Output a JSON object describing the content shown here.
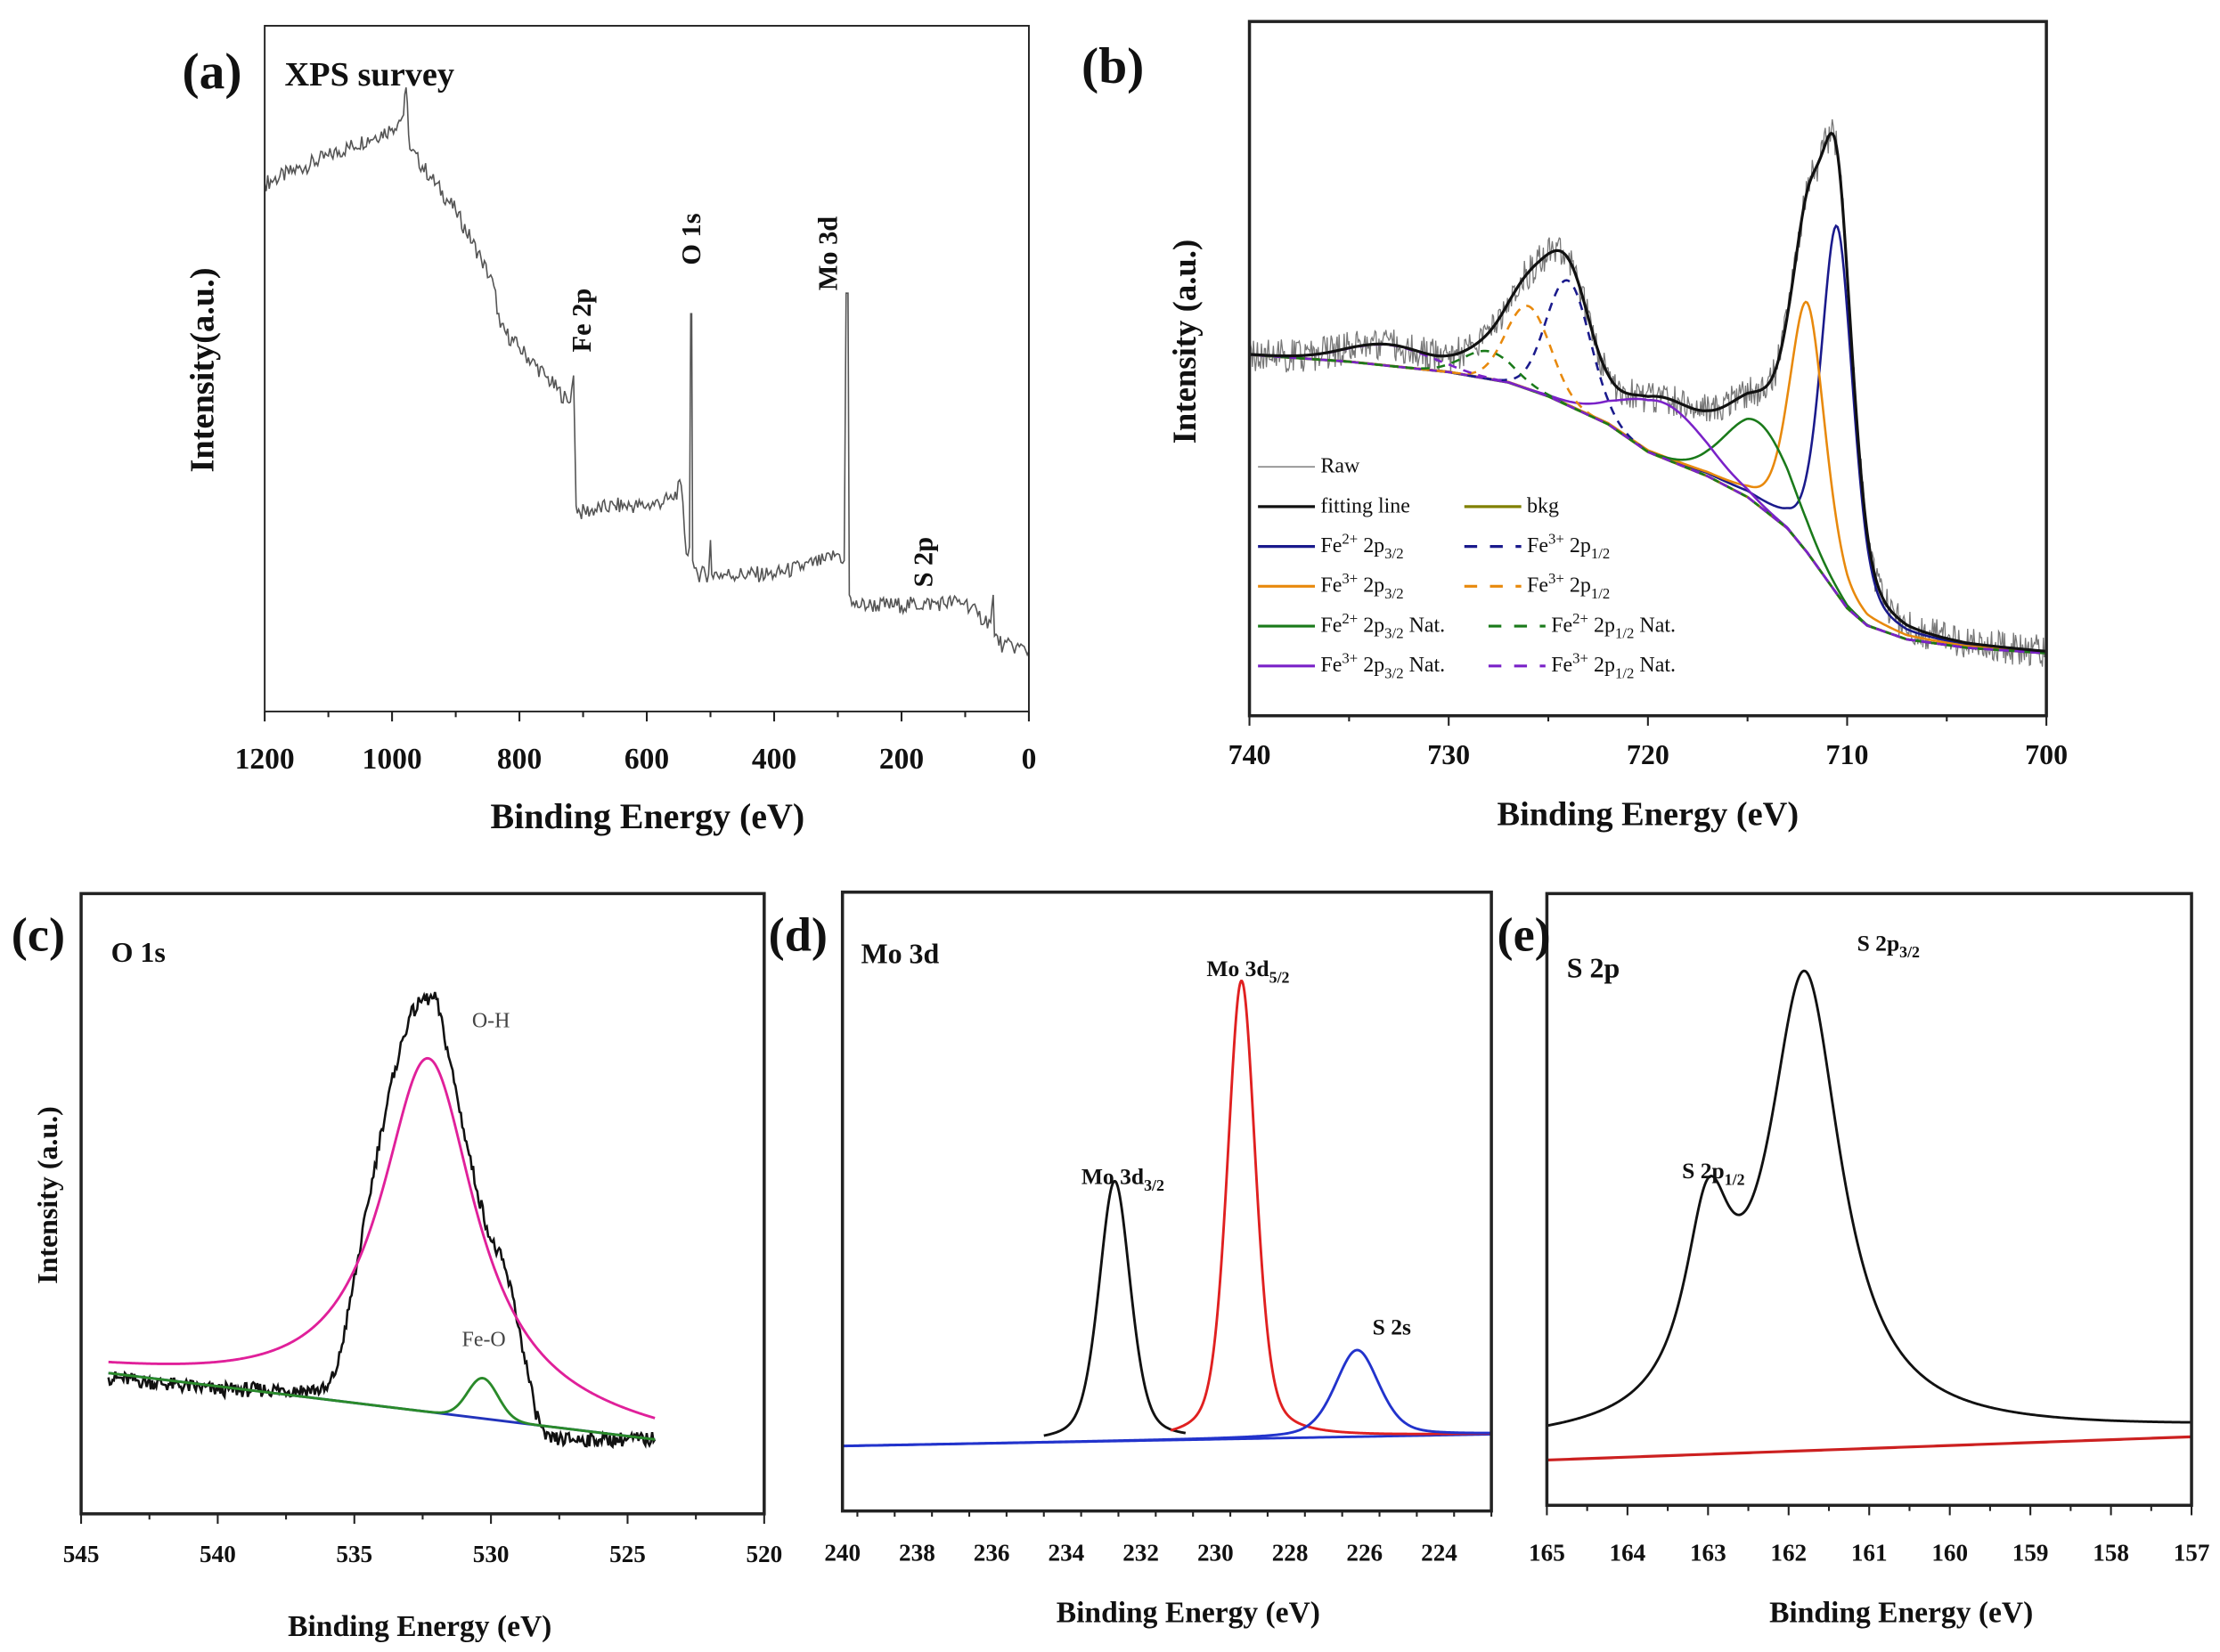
{
  "chart_data": [
    {
      "panel": "(a)",
      "title": "XPS survey",
      "type": "line",
      "xlabel": "Binding Energy (eV)",
      "ylabel": "Intensity(a.u.)",
      "xlim": [
        1200,
        0
      ],
      "ylim": [
        0,
        1
      ],
      "xticks": [
        "1200",
        "1000",
        "800",
        "600",
        "400",
        "200",
        "0"
      ],
      "xtick_values": [
        1200,
        1000,
        800,
        600,
        400,
        200,
        0
      ],
      "raw": {
        "color": "#555555",
        "points": [
          [
            1200,
            0.77
          ],
          [
            1100,
            0.81
          ],
          [
            1000,
            0.85
          ],
          [
            982,
            0.87
          ],
          [
            978,
            0.91
          ],
          [
            972,
            0.82
          ],
          [
            940,
            0.78
          ],
          [
            900,
            0.73
          ],
          [
            860,
            0.66
          ],
          [
            840,
            0.62
          ],
          [
            830,
            0.56
          ],
          [
            800,
            0.53
          ],
          [
            760,
            0.49
          ],
          [
            722,
            0.45
          ],
          [
            718,
            0.47
          ],
          [
            715,
            0.49
          ],
          [
            711,
            0.3
          ],
          [
            705,
            0.29
          ],
          [
            650,
            0.3
          ],
          [
            600,
            0.3
          ],
          [
            560,
            0.31
          ],
          [
            546,
            0.33
          ],
          [
            538,
            0.23
          ],
          [
            533,
            0.24
          ],
          [
            531,
            0.58
          ],
          [
            529.5,
            0.58
          ],
          [
            528,
            0.22
          ],
          [
            520,
            0.2
          ],
          [
            503,
            0.2
          ],
          [
            500,
            0.25
          ],
          [
            498,
            0.2
          ],
          [
            400,
            0.2
          ],
          [
            320,
            0.22
          ],
          [
            300,
            0.23
          ],
          [
            290,
            0.22
          ],
          [
            287,
            0.61
          ],
          [
            284,
            0.61
          ],
          [
            282,
            0.17
          ],
          [
            278,
            0.155
          ],
          [
            200,
            0.155
          ],
          [
            100,
            0.16
          ],
          [
            80,
            0.14
          ],
          [
            60,
            0.13
          ],
          [
            56,
            0.17
          ],
          [
            54,
            0.11
          ],
          [
            40,
            0.095
          ],
          [
            20,
            0.095
          ],
          [
            0,
            0.088
          ]
        ]
      },
      "annotations": [
        {
          "text": "Fe 2p",
          "x": 705
        },
        {
          "text": "O 1s",
          "x": 531
        },
        {
          "text": "Mo 3d",
          "x": 285
        },
        {
          "text": "S 2p",
          "x": 165
        }
      ]
    },
    {
      "panel": "(b)",
      "type": "line",
      "xlabel": "Binding Energy (eV)",
      "ylabel": "Intensity (a.u.)",
      "xlim": [
        740,
        700
      ],
      "ylim": [
        0,
        1
      ],
      "xticks": [
        "740",
        "730",
        "720",
        "710",
        "700"
      ],
      "xtick_values": [
        740,
        730,
        720,
        710,
        700
      ],
      "background": {
        "name": "bkg",
        "color": "#808000",
        "points": [
          [
            740,
            0.52
          ],
          [
            735,
            0.51
          ],
          [
            730,
            0.495
          ],
          [
            727,
            0.48
          ],
          [
            725,
            0.46
          ],
          [
            722,
            0.42
          ],
          [
            720,
            0.38
          ],
          [
            717,
            0.345
          ],
          [
            715,
            0.315
          ],
          [
            713,
            0.27
          ],
          [
            712,
            0.235
          ],
          [
            711,
            0.195
          ],
          [
            710,
            0.155
          ],
          [
            709,
            0.13
          ],
          [
            707,
            0.11
          ],
          [
            704,
            0.098
          ],
          [
            700,
            0.09
          ]
        ]
      },
      "peaks": [
        {
          "name": "Fe2+ 2p3/2",
          "color": "#1a1a8c",
          "dash": false,
          "shape": "voigt",
          "center": 710.5,
          "height": 0.53,
          "fwhm": 1.9
        },
        {
          "name": "Fe3+ 2p3/2",
          "color": "#e8890c",
          "dash": false,
          "shape": "voigt",
          "center": 712.0,
          "height": 0.36,
          "fwhm": 2.1
        },
        {
          "name": "Fe2+ 2p3/2 Nat.",
          "color": "#1a7a1a",
          "dash": false,
          "shape": "gauss",
          "center": 714.4,
          "height": 0.12,
          "fwhm": 4.0
        },
        {
          "name": "Fe3+ 2p3/2 Nat.",
          "color": "#7a22c8",
          "dash": false,
          "shape": "gauss",
          "center": 719.2,
          "height": 0.08,
          "fwhm": 5.0
        },
        {
          "name": "Fe3+ 2p1/2",
          "color": "#1a1a8c",
          "dash": true,
          "shape": "gauss",
          "center": 724.0,
          "height": 0.18,
          "fwhm": 2.6
        },
        {
          "name": "Fe3+ 2p1/2",
          "color": "#e8890c",
          "dash": true,
          "shape": "gauss",
          "center": 726.0,
          "height": 0.12,
          "fwhm": 2.6
        },
        {
          "name": "Fe2+ 2p1/2 Nat.",
          "color": "#1a7a1a",
          "dash": true,
          "shape": "gauss",
          "center": 728.0,
          "height": 0.04,
          "fwhm": 3.0
        },
        {
          "name": "Fe3+ 2p1/2 Nat.",
          "color": "#7a22c8",
          "dash": true,
          "shape": "gauss",
          "center": 733.0,
          "height": 0.03,
          "fwhm": 5.0
        }
      ],
      "envelope": {
        "name": "fitting line",
        "color": "#111111"
      },
      "raw_from_envelope": {
        "name": "Raw",
        "color": "#777777"
      },
      "legend_placement": "bottom-left",
      "legend": [
        {
          "color": "#888888",
          "dash": false,
          "label": [
            {
              "t": "Raw"
            }
          ]
        },
        {
          "color": "#111111",
          "dash": false,
          "label": [
            {
              "t": "fitting line"
            }
          ]
        },
        {
          "color": "#808000",
          "dash": false,
          "label": [
            {
              "t": "bkg"
            }
          ]
        },
        {
          "color": "#1a1a8c",
          "dash": false,
          "label": [
            {
              "t": "Fe"
            },
            {
              "t": "2+",
              "sup": true
            },
            {
              "t": " 2p"
            },
            {
              "t": "3/2",
              "sub": true
            }
          ]
        },
        {
          "color": "#1a1a8c",
          "dash": true,
          "label": [
            {
              "t": "Fe"
            },
            {
              "t": "3+",
              "sup": true
            },
            {
              "t": " 2p"
            },
            {
              "t": "1/2",
              "sub": true
            }
          ]
        },
        {
          "color": "#e8890c",
          "dash": false,
          "label": [
            {
              "t": "Fe"
            },
            {
              "t": "3+",
              "sup": true
            },
            {
              "t": " 2p"
            },
            {
              "t": "3/2",
              "sub": true
            }
          ]
        },
        {
          "color": "#e8890c",
          "dash": true,
          "label": [
            {
              "t": "Fe"
            },
            {
              "t": "3+",
              "sup": true
            },
            {
              "t": " 2p"
            },
            {
              "t": "1/2",
              "sub": true
            }
          ]
        },
        {
          "color": "#1a7a1a",
          "dash": false,
          "label": [
            {
              "t": "Fe"
            },
            {
              "t": "2+",
              "sup": true
            },
            {
              "t": " 2p"
            },
            {
              "t": "3/2",
              "sub": true
            },
            {
              "t": " Nat."
            }
          ]
        },
        {
          "color": "#1a7a1a",
          "dash": true,
          "label": [
            {
              "t": "Fe"
            },
            {
              "t": "2+",
              "sup": true
            },
            {
              "t": " 2p"
            },
            {
              "t": "1/2",
              "sub": true
            },
            {
              "t": " Nat."
            }
          ]
        },
        {
          "color": "#7a22c8",
          "dash": false,
          "label": [
            {
              "t": "Fe"
            },
            {
              "t": "3+",
              "sup": true
            },
            {
              "t": " 2p"
            },
            {
              "t": "3/2",
              "sub": true
            },
            {
              "t": " Nat."
            }
          ]
        },
        {
          "color": "#7a22c8",
          "dash": true,
          "label": [
            {
              "t": "Fe"
            },
            {
              "t": "3+",
              "sup": true
            },
            {
              "t": " 2p"
            },
            {
              "t": "1/2",
              "sub": true
            },
            {
              "t": " Nat."
            }
          ]
        }
      ]
    },
    {
      "panel": "(c)",
      "title": "O 1s",
      "type": "line",
      "xlabel": "Binding Energy (eV)",
      "ylabel": "Intensity (a.u.)",
      "xlim": [
        545,
        520
      ],
      "ylim": [
        0,
        1
      ],
      "xticks": [
        "545",
        "540",
        "535",
        "530",
        "525",
        "520"
      ],
      "xtick_values": [
        545,
        540,
        535,
        530,
        525,
        520
      ],
      "background": {
        "name": "bkg",
        "color": "#2233bb",
        "points": [
          [
            544,
            0.227
          ],
          [
            524,
            0.12
          ]
        ],
        "range": [
          544,
          524
        ]
      },
      "peaks": [
        {
          "name": "O-H",
          "color": "#e0209a",
          "dash": false,
          "shape": "lorentz",
          "center": 532.3,
          "height": 0.57,
          "fwhm": 4.2,
          "range": [
            544,
            524
          ]
        },
        {
          "name": "Fe-O",
          "color": "#2a8a2a",
          "dash": false,
          "shape": "gauss",
          "center": 530.3,
          "height": 0.065,
          "fwhm": 1.3,
          "range": [
            544,
            524
          ]
        }
      ],
      "raw": {
        "color": "#111111",
        "points": [
          [
            544,
            0.22
          ],
          [
            540,
            0.2
          ],
          [
            536,
            0.2
          ],
          [
            535.6,
            0.24
          ],
          [
            535.2,
            0.33
          ],
          [
            534.5,
            0.5
          ],
          [
            534,
            0.62
          ],
          [
            533.5,
            0.72
          ],
          [
            533,
            0.8
          ],
          [
            532.5,
            0.83
          ],
          [
            532,
            0.83
          ],
          [
            531.5,
            0.73
          ],
          [
            531,
            0.62
          ],
          [
            530.5,
            0.52
          ],
          [
            530,
            0.44
          ],
          [
            529.6,
            0.41
          ],
          [
            529.2,
            0.35
          ],
          [
            528.8,
            0.26
          ],
          [
            528.4,
            0.17
          ],
          [
            528,
            0.12
          ],
          [
            526,
            0.12
          ],
          [
            524,
            0.12
          ]
        ]
      },
      "annotations": [
        {
          "text": "O-H",
          "x": 531.2
        },
        {
          "text": "Fe-O",
          "x": 530.3
        }
      ]
    },
    {
      "panel": "(d)",
      "title": "Mo 3d",
      "type": "line",
      "xlabel": "Binding Energy (eV)",
      "xlim": [
        240,
        222.6
      ],
      "ylim": [
        0,
        1
      ],
      "xticks": [
        "240",
        "238",
        "236",
        "234",
        "232",
        "230",
        "228",
        "226",
        "224"
      ],
      "xtick_values": [
        240,
        238,
        236,
        234,
        232,
        230,
        228,
        226,
        224
      ],
      "background": {
        "name": "baseline",
        "color": "#2233cc",
        "points": [
          [
            240,
            0.105
          ],
          [
            222.6,
            0.124
          ]
        ],
        "range": [
          240,
          222.6
        ]
      },
      "peaks": [
        {
          "name": "Mo 3d3/2",
          "color": "#111111",
          "dash": false,
          "shape": "voigt",
          "center": 232.7,
          "height": 0.42,
          "fwhm": 1.0,
          "range": [
            234.6,
            230.8
          ]
        },
        {
          "name": "Mo 3d5/2",
          "color": "#e02020",
          "dash": false,
          "shape": "voigt",
          "center": 229.3,
          "height": 0.74,
          "fwhm": 0.9,
          "range": [
            231.2,
            222.6
          ]
        },
        {
          "name": "S 2s",
          "color": "#2233cc",
          "dash": false,
          "shape": "voigt",
          "center": 226.2,
          "height": 0.14,
          "fwhm": 1.4,
          "range": [
            240,
            222.6
          ]
        }
      ],
      "annotations": [
        {
          "label": [
            {
              "t": "Mo 3d"
            },
            {
              "t": "3/2",
              "sub": true
            }
          ],
          "x": 232.7
        },
        {
          "label": [
            {
              "t": "Mo 3d"
            },
            {
              "t": "5/2",
              "sub": true
            }
          ],
          "x": 229.3
        },
        {
          "label": [
            {
              "t": "S 2s"
            }
          ],
          "x": 226.2
        }
      ]
    },
    {
      "panel": "(e)",
      "title": "S 2p",
      "type": "line",
      "xlabel": "Binding Energy (eV)",
      "xlim": [
        165,
        157
      ],
      "ylim": [
        0,
        1
      ],
      "xticks": [
        "165",
        "164",
        "163",
        "162",
        "161",
        "160",
        "159",
        "158",
        "157"
      ],
      "xtick_values": [
        165,
        164,
        163,
        162,
        161,
        160,
        159,
        158,
        157
      ],
      "background": {
        "name": "envelope-base",
        "color": "none",
        "points": [
          [
            165,
            0.1
          ],
          [
            157,
            0.125
          ]
        ]
      },
      "peaks": [
        {
          "name": "S 2p3/2",
          "color": "#111111",
          "shape": "lorentz",
          "center": 161.8,
          "height": 0.74,
          "fwhm": 1.1,
          "draw": false
        },
        {
          "name": "S 2p1/2",
          "color": "#111111",
          "shape": "lorentz",
          "center": 163.0,
          "height": 0.3,
          "fwhm": 0.7,
          "draw": false
        }
      ],
      "envelope": {
        "name": "S 2p envelope",
        "color": "#111111"
      },
      "extra_lines": [
        {
          "name": "baseline",
          "color": "#cc2020",
          "points": [
            [
              165,
              0.074
            ],
            [
              157,
              0.112
            ]
          ]
        }
      ],
      "annotations": [
        {
          "label": [
            {
              "t": "S 2p"
            },
            {
              "t": "1/2",
              "sub": true
            }
          ],
          "x": 163.0
        },
        {
          "label": [
            {
              "t": "S 2p"
            },
            {
              "t": "3/2",
              "sub": true
            }
          ],
          "x": 161.8
        }
      ]
    }
  ]
}
